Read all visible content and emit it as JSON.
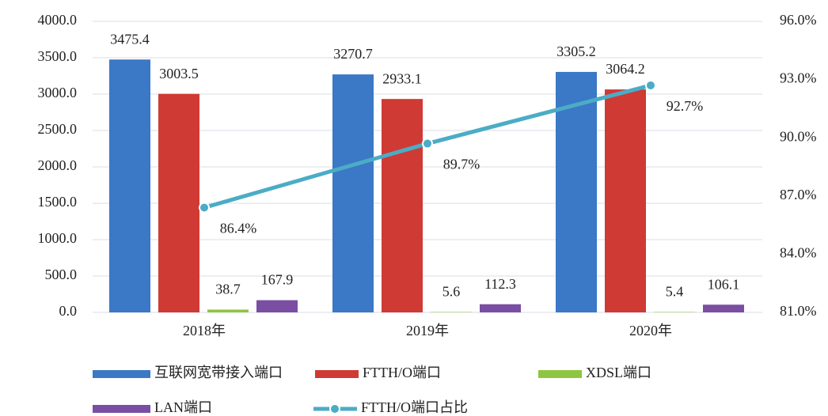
{
  "chart_data": {
    "type": "bar_line",
    "categories": [
      "2018年",
      "2019年",
      "2020年"
    ],
    "series": [
      {
        "name": "互联网宽带接入端口",
        "color": "#3b78c6",
        "values": [
          3475.4,
          3270.7,
          3305.2
        ]
      },
      {
        "name": "FTTH/O端口",
        "color": "#cf3a34",
        "values": [
          3003.5,
          2933.1,
          3064.2
        ]
      },
      {
        "name": "XDSL端口",
        "color": "#8fc63f",
        "values": [
          38.7,
          5.6,
          5.4
        ]
      },
      {
        "name": "LAN端口",
        "color": "#7a4ea3",
        "values": [
          167.9,
          112.3,
          106.1
        ]
      },
      {
        "name": "FTTH/O端口占比",
        "color": "#4bacc6",
        "axis": "y2",
        "type": "line",
        "values": [
          86.4,
          89.7,
          92.7
        ],
        "value_labels": [
          "86.4%",
          "89.7%",
          "92.7%"
        ]
      }
    ],
    "ylim": [
      0,
      4000
    ],
    "yticks": [
      {
        "value": 0,
        "label": "0.0"
      },
      {
        "value": 500,
        "label": "500.0"
      },
      {
        "value": 1000,
        "label": "1000.0"
      },
      {
        "value": 1500,
        "label": "1500.0"
      },
      {
        "value": 2000,
        "label": "2000.0"
      },
      {
        "value": 2500,
        "label": "2500.0"
      },
      {
        "value": 3000,
        "label": "3000.0"
      },
      {
        "value": 3500,
        "label": "3500.0"
      },
      {
        "value": 4000,
        "label": "4000.0"
      }
    ],
    "y2lim": [
      81,
      96
    ],
    "y2ticks": [
      {
        "value": 81,
        "label": "81.0%"
      },
      {
        "value": 84,
        "label": "84.0%"
      },
      {
        "value": 87,
        "label": "87.0%"
      },
      {
        "value": 90,
        "label": "90.0%"
      },
      {
        "value": 93,
        "label": "93.0%"
      },
      {
        "value": 96,
        "label": "96.0%"
      }
    ],
    "grid": true
  }
}
